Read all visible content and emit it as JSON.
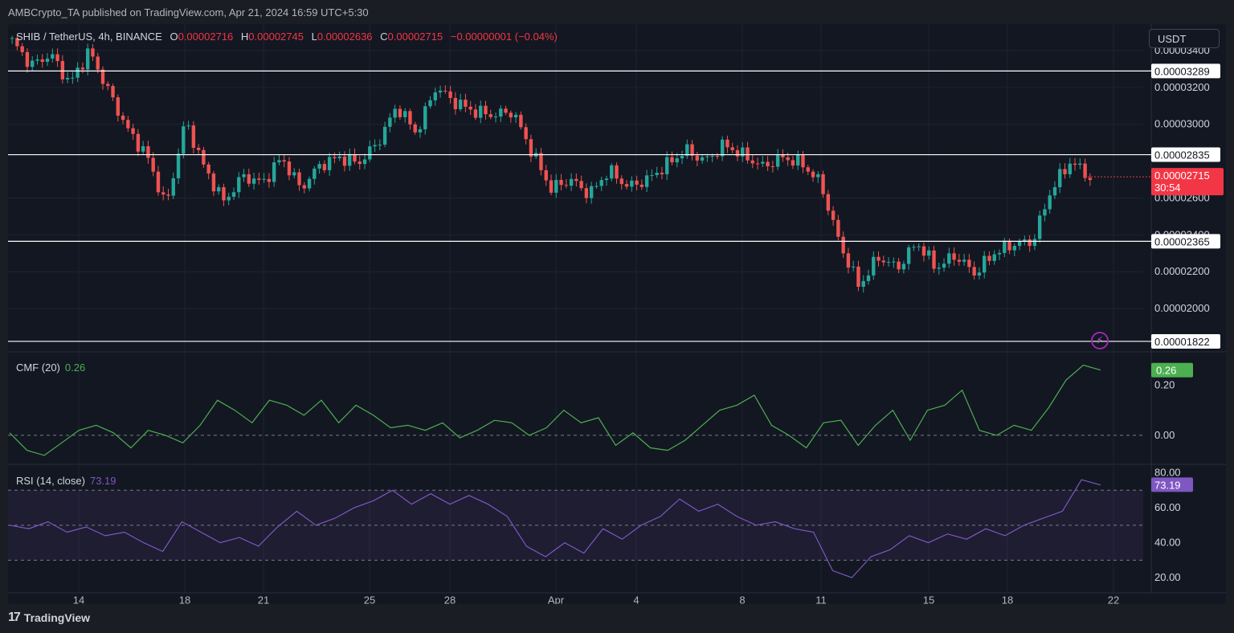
{
  "publisher_line": "AMBCrypto_TA published on TradingView.com, Apr 21, 2024 16:59 UTC+5:30",
  "symbol_line": "SHIB / TetherUS, 4h, BINANCE",
  "ohlc": {
    "o_label": "O",
    "o": "0.00002716",
    "h_label": "H",
    "h": "0.00002745",
    "l_label": "L",
    "l": "0.00002636",
    "c_label": "C",
    "c": "0.00002715",
    "change": "−0.00000001 (−0.04%)"
  },
  "currency": "USDT",
  "colors": {
    "up": "#26a69a",
    "down": "#ef5350",
    "cmf": "#4caf50",
    "rsi": "#7e57c2",
    "level_line": "#ffffff",
    "last_price_bg": "#f23645"
  },
  "price_axis_labels": [
    "0.00003400",
    "0.00003200",
    "0.00003000",
    "0.00002600",
    "0.00002400",
    "0.00002200",
    "0.00002000"
  ],
  "level_labels": [
    "0.00003289",
    "0.00002835",
    "0.00002365",
    "0.00001822"
  ],
  "last_price": {
    "value": "0.00002715",
    "countdown": "30:54"
  },
  "date_labels": [
    "14",
    "18",
    "21",
    "25",
    "28",
    "Apr",
    "4",
    "8",
    "11",
    "15",
    "18",
    "22"
  ],
  "cmf": {
    "label": "CMF (20)",
    "value": "0.26",
    "axis_labels": [
      "0.20",
      "0.00"
    ]
  },
  "rsi": {
    "label": "RSI (14, close)",
    "value": "73.19",
    "axis_labels": [
      "80.00",
      "60.00",
      "40.00",
      "20.00"
    ]
  },
  "footer_brand": "TradingView",
  "footer_icon": "tradingview-logo-icon",
  "indicator_icon": "lightning-bolt-icon",
  "chart_data": [
    {
      "type": "candlestick",
      "title": "SHIB / TetherUS, 4h, BINANCE",
      "ylim": [
        1.8e-05,
        3.5e-05
      ],
      "x_ticks": [
        "14",
        "18",
        "21",
        "25",
        "28",
        "Apr",
        "4",
        "8",
        "11",
        "15",
        "18",
        "22"
      ],
      "price_path": [
        3.45e-05,
        3.32e-05,
        3.38e-05,
        3.22e-05,
        3.4e-05,
        3.18e-05,
        2.97e-05,
        2.83e-05,
        2.55e-05,
        3.02e-05,
        2.76e-05,
        2.58e-05,
        2.72e-05,
        2.68e-05,
        2.82e-05,
        2.65e-05,
        2.78e-05,
        2.82e-05,
        2.79e-05,
        2.9e-05,
        3.1e-05,
        2.95e-05,
        3.2e-05,
        3.12e-05,
        3.07e-05,
        3.05e-05,
        3.07e-05,
        2.85e-05,
        2.65e-05,
        2.7e-05,
        2.62e-05,
        2.75e-05,
        2.66e-05,
        2.7e-05,
        2.78e-05,
        2.86e-05,
        2.8e-05,
        2.89e-05,
        2.83e-05,
        2.77e-05,
        2.82e-05,
        2.79e-05,
        2.68e-05,
        2.35e-05,
        2.12e-05,
        2.28e-05,
        2.22e-05,
        2.36e-05,
        2.22e-05,
        2.29e-05,
        2.19e-05,
        2.3e-05,
        2.35e-05,
        2.36e-05,
        2.65e-05,
        2.8e-05,
        2.71e-05
      ],
      "horizontal_levels": [
        3.289e-05,
        2.835e-05,
        2.365e-05,
        1.822e-05
      ],
      "last_price": 2.715e-05
    },
    {
      "type": "line",
      "title": "CMF (20)",
      "ylim": [
        -0.09,
        0.32
      ],
      "zero_line": 0.0,
      "values": [
        0.01,
        -0.06,
        -0.08,
        -0.03,
        0.02,
        0.04,
        0.01,
        -0.05,
        0.02,
        0.0,
        -0.03,
        0.04,
        0.14,
        0.1,
        0.05,
        0.14,
        0.12,
        0.08,
        0.14,
        0.05,
        0.12,
        0.08,
        0.03,
        0.04,
        0.02,
        0.05,
        -0.01,
        0.02,
        0.06,
        0.05,
        0.0,
        0.03,
        0.1,
        0.05,
        0.07,
        -0.04,
        0.01,
        -0.05,
        -0.06,
        -0.02,
        0.04,
        0.1,
        0.12,
        0.16,
        0.04,
        0.0,
        -0.05,
        0.05,
        0.06,
        -0.04,
        0.04,
        0.1,
        -0.02,
        0.1,
        0.12,
        0.18,
        0.02,
        0.0,
        0.04,
        0.02,
        0.11,
        0.22,
        0.28,
        0.26
      ]
    },
    {
      "type": "line",
      "title": "RSI (14, close)",
      "ylim": [
        15,
        83
      ],
      "bands": [
        70,
        50,
        30
      ],
      "values": [
        50,
        48,
        52,
        46,
        49,
        44,
        46,
        40,
        35,
        52,
        46,
        40,
        43,
        38,
        49,
        58,
        50,
        54,
        60,
        64,
        70,
        62,
        68,
        62,
        67,
        62,
        55,
        38,
        32,
        40,
        34,
        48,
        42,
        50,
        55,
        65,
        58,
        62,
        55,
        50,
        52,
        48,
        46,
        24,
        20,
        32,
        36,
        44,
        40,
        45,
        42,
        48,
        44,
        50,
        54,
        58,
        76,
        73
      ]
    }
  ]
}
